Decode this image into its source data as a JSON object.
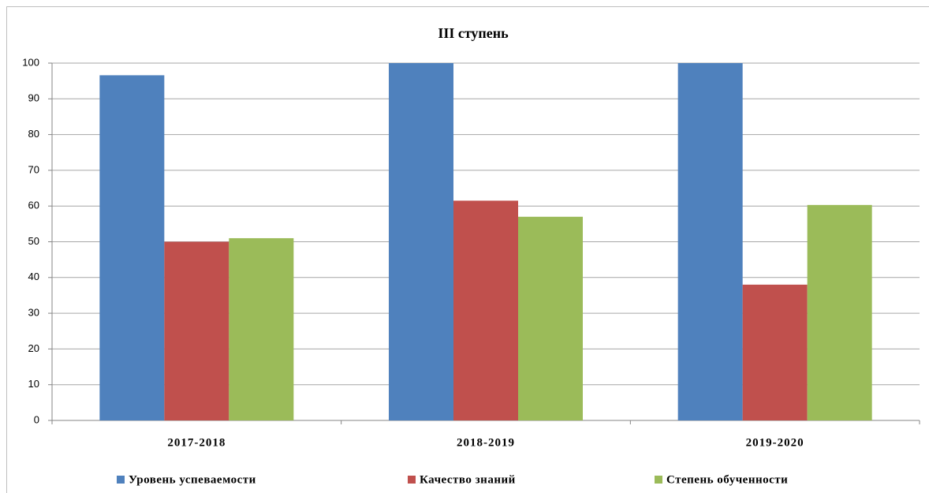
{
  "chart_data": {
    "type": "bar",
    "title": "III ступень",
    "categories": [
      "2017-2018",
      "2018-2019",
      "2019-2020"
    ],
    "series": [
      {
        "name": "Уровень успеваемости",
        "color": "#4f81bd",
        "values": [
          96.6,
          100,
          100
        ]
      },
      {
        "name": "Качество знаний",
        "color": "#c0504d",
        "values": [
          50,
          61.5,
          38
        ]
      },
      {
        "name": "Степень обученности",
        "color": "#9bbb59",
        "values": [
          51,
          57,
          60.3
        ]
      }
    ],
    "ylim": [
      0,
      100
    ],
    "yticks": [
      0,
      10,
      20,
      30,
      40,
      50,
      60,
      70,
      80,
      90,
      100
    ],
    "grid": true,
    "legend": "bottom"
  }
}
